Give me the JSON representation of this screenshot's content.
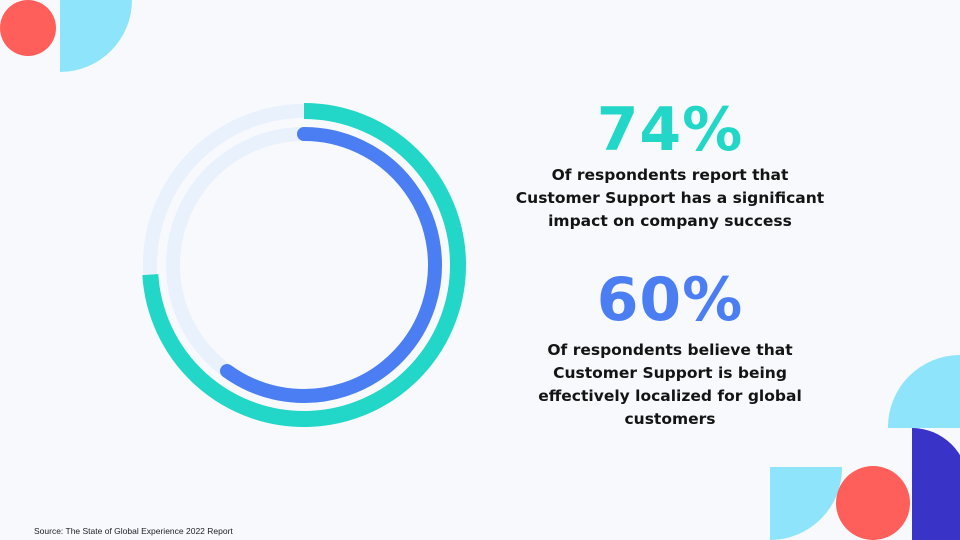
{
  "chart_data": {
    "type": "radial-progress",
    "categories": [
      "Of respondents report that Customer Support has a significant impact on company success",
      "Of respondents believe that Customer Support is being effectively localized for global customers"
    ],
    "values": [
      74,
      60
    ],
    "value_labels": [
      "74%",
      "60%"
    ],
    "colors": [
      "#22d6c8",
      "#4b7ef2"
    ],
    "ylim": [
      0,
      100
    ],
    "source": "Source: The State of Global Experience 2022 Report"
  }
}
